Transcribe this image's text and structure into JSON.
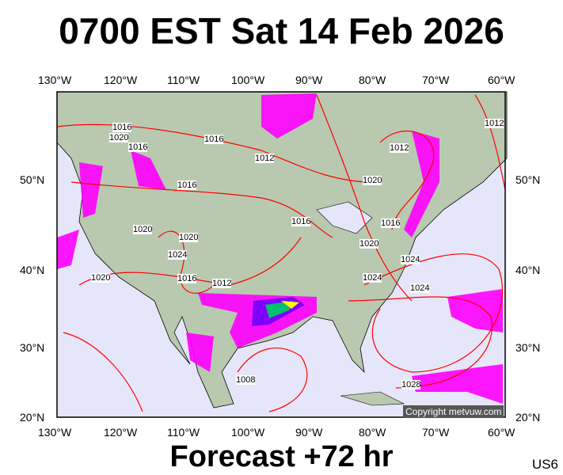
{
  "title": "0700 EST Sat 14 Feb 2026",
  "footer": "Forecast +72 hr",
  "region_code": "US6",
  "copyright": "Copyright metvuw.com",
  "lon_labels": [
    "130°W",
    "120°W",
    "110°W",
    "100°W",
    "90°W",
    "80°W",
    "70°W",
    "60°W"
  ],
  "lat_labels": [
    "50°N",
    "40°N",
    "30°N",
    "20°N"
  ],
  "isobar_labels": [
    "1016",
    "1020",
    "1016",
    "1016",
    "1012",
    "1016",
    "1020",
    "1012",
    "1012",
    "1016",
    "1016",
    "1020",
    "1024",
    "1024",
    "1024",
    "1020",
    "1020",
    "1024",
    "1016",
    "1012",
    "1020",
    "1008",
    "1028"
  ],
  "colors": {
    "sea": "#e6e6fa",
    "land": "#b9c9b0",
    "isobar": "#ff0000",
    "precip_light": "#ff00ff",
    "precip_mid": "#8000ff",
    "precip_heavy": "#ffff00"
  }
}
